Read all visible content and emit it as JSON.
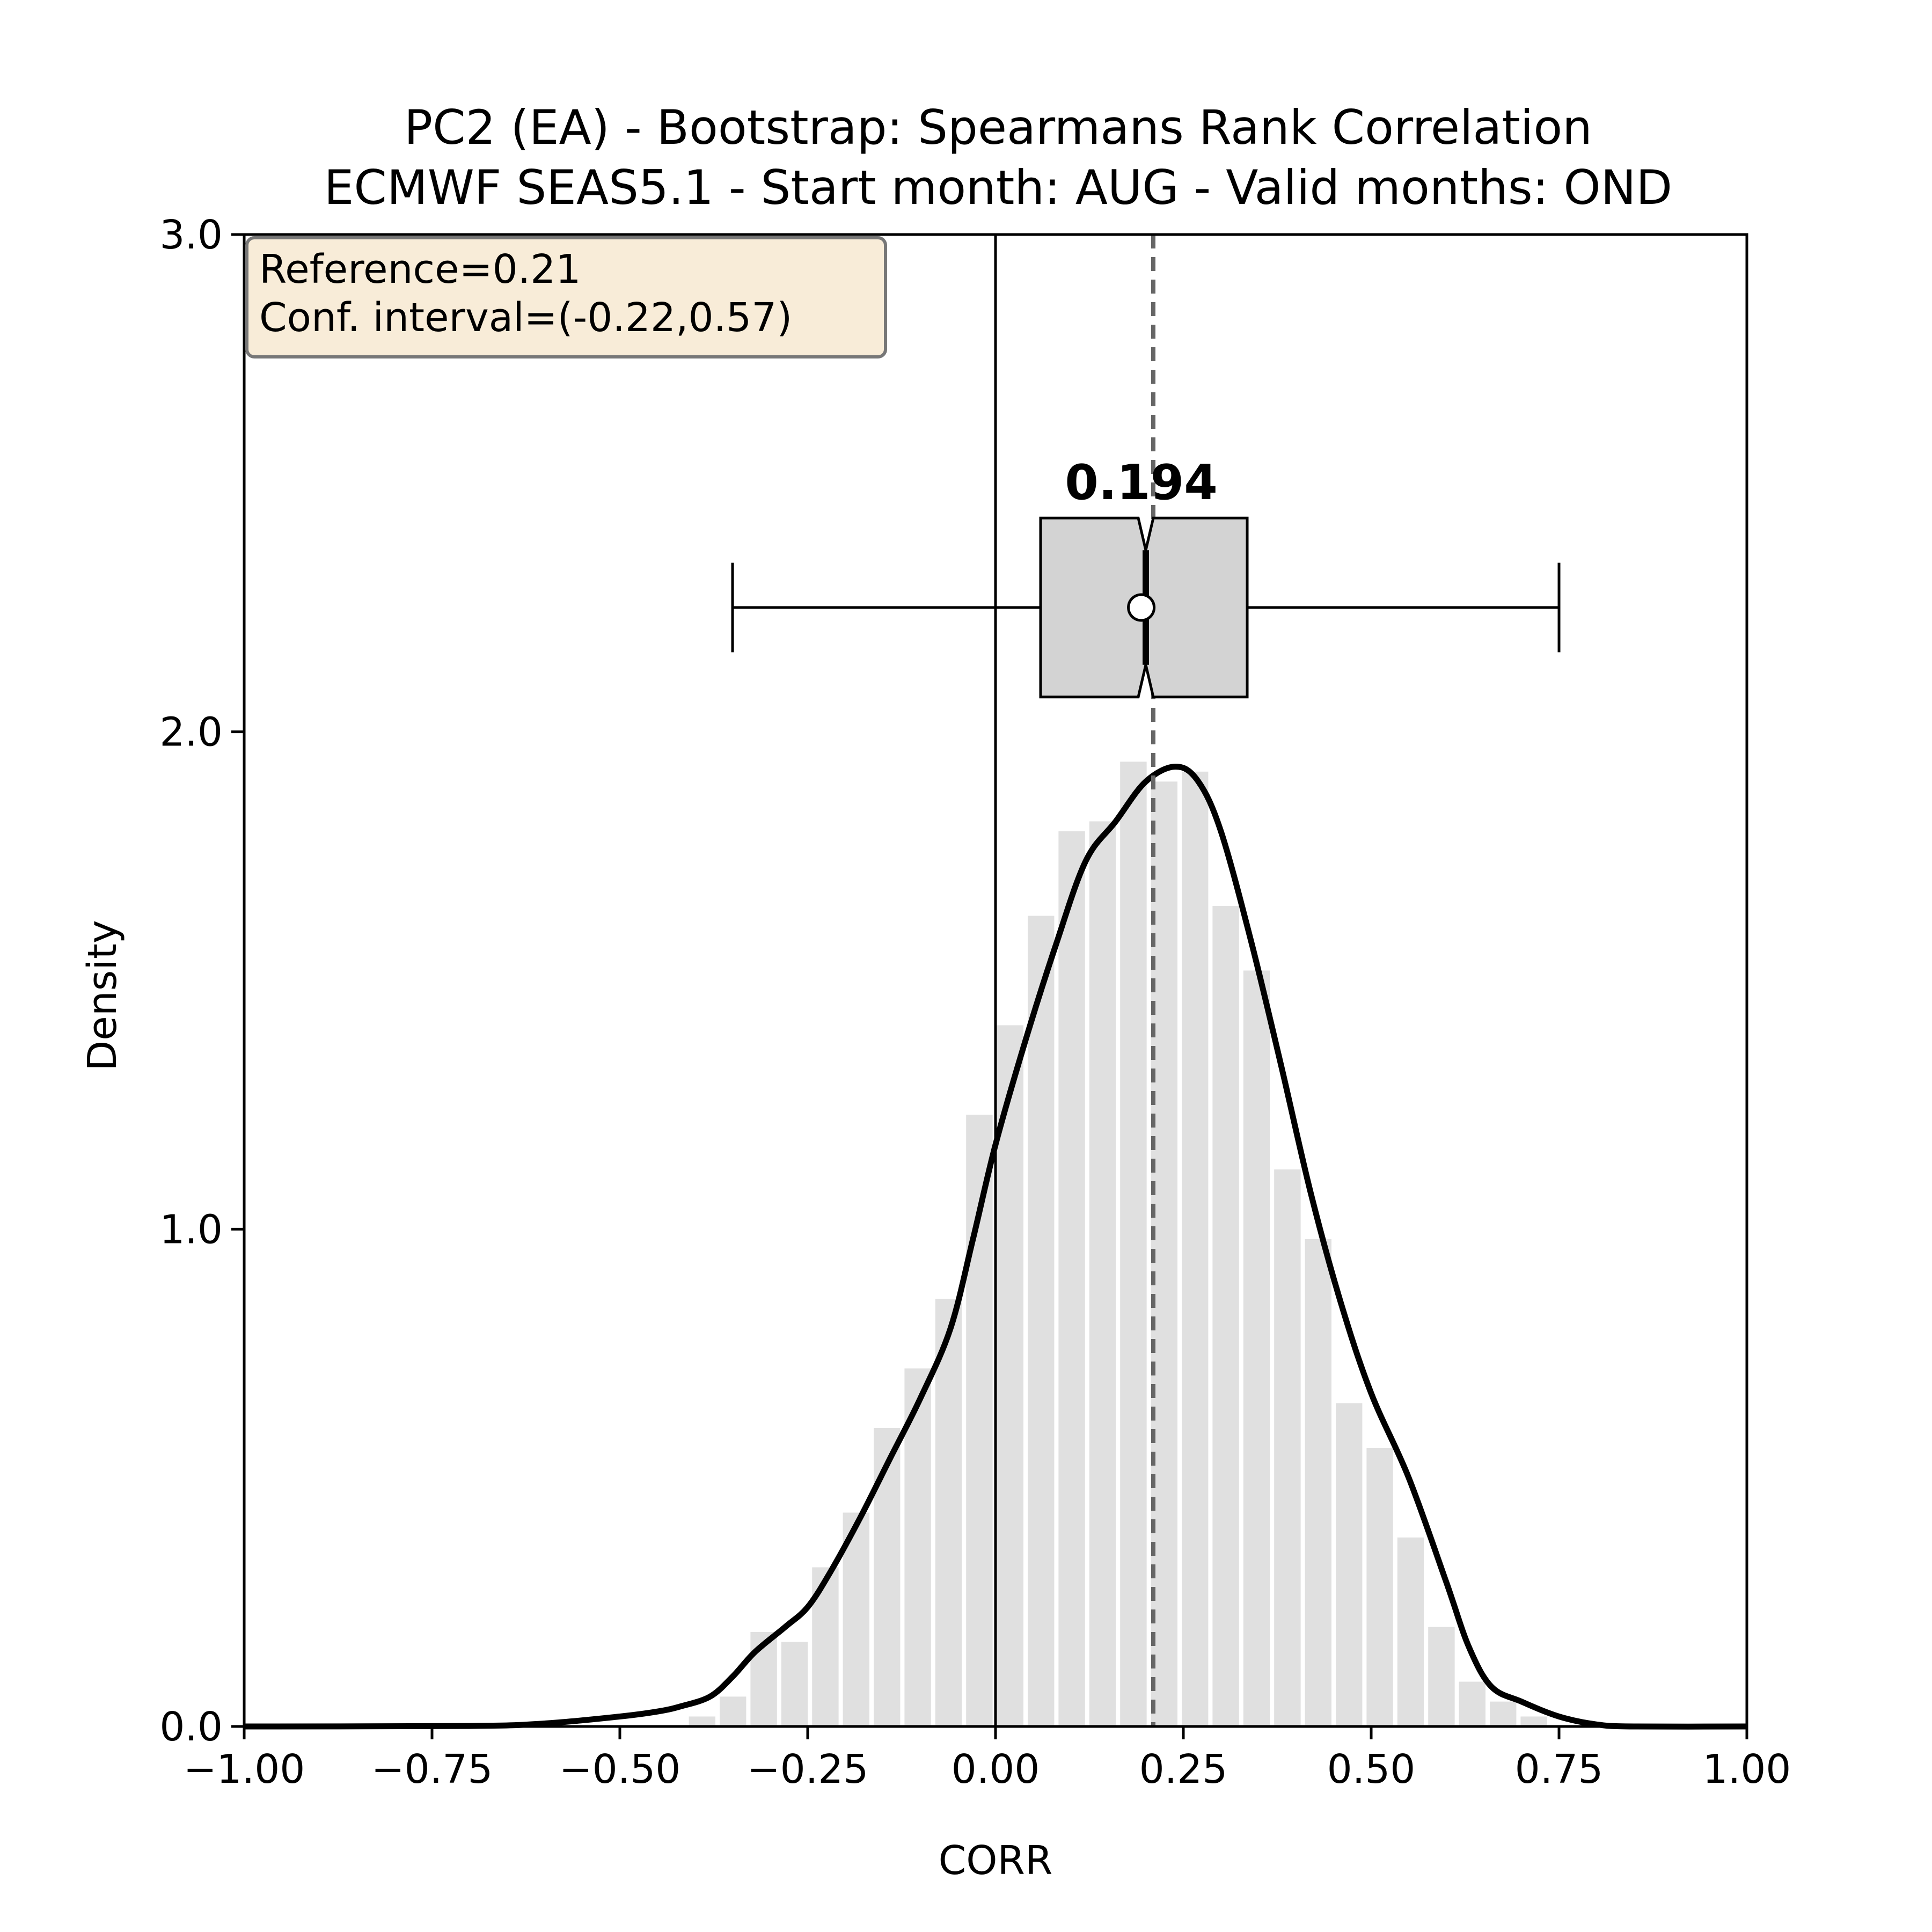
{
  "chart_data": {
    "type": "histogram",
    "title": "PC2 (EA) - Bootstrap: Spearmans Rank Correlation",
    "subtitle": "ECMWF SEAS5.1 - Start month: AUG - Valid months: OND",
    "xlabel": "CORR",
    "ylabel": "Density",
    "xlim": [
      -1.0,
      1.0
    ],
    "ylim": [
      0.0,
      3.0
    ],
    "x_ticks": [
      -1.0,
      -0.75,
      -0.5,
      -0.25,
      0.0,
      0.25,
      0.5,
      0.75,
      1.0
    ],
    "x_tick_labels": [
      "−1.00",
      "−0.75",
      "−0.50",
      "−0.25",
      "0.00",
      "0.25",
      "0.50",
      "0.75",
      "1.00"
    ],
    "y_ticks": [
      0.0,
      1.0,
      2.0,
      3.0
    ],
    "y_tick_labels": [
      "0.0",
      "1.0",
      "2.0",
      "3.0"
    ],
    "grid": false,
    "info_box": {
      "line1": "Reference=0.21",
      "line2": "Conf. interval=(-0.22,0.57)",
      "placement": "top-left"
    },
    "reference_value": 0.21,
    "zero_line_x": 0.0,
    "histogram": {
      "color": "#e0e0e0",
      "bins": [
        {
          "x0": -0.411,
          "x1": -0.37,
          "density": 0.02
        },
        {
          "x0": -0.37,
          "x1": -0.329,
          "density": 0.06
        },
        {
          "x0": -0.329,
          "x1": -0.288,
          "density": 0.19
        },
        {
          "x0": -0.288,
          "x1": -0.247,
          "density": 0.17
        },
        {
          "x0": -0.247,
          "x1": -0.206,
          "density": 0.32
        },
        {
          "x0": -0.206,
          "x1": -0.165,
          "density": 0.43
        },
        {
          "x0": -0.165,
          "x1": -0.124,
          "density": 0.6
        },
        {
          "x0": -0.124,
          "x1": -0.083,
          "density": 0.72
        },
        {
          "x0": -0.083,
          "x1": -0.042,
          "density": 0.86
        },
        {
          "x0": -0.042,
          "x1": -0.001,
          "density": 1.23
        },
        {
          "x0": -0.001,
          "x1": 0.04,
          "density": 1.41
        },
        {
          "x0": 0.04,
          "x1": 0.081,
          "density": 1.63
        },
        {
          "x0": 0.081,
          "x1": 0.122,
          "density": 1.8
        },
        {
          "x0": 0.122,
          "x1": 0.163,
          "density": 1.82
        },
        {
          "x0": 0.163,
          "x1": 0.204,
          "density": 1.94
        },
        {
          "x0": 0.204,
          "x1": 0.245,
          "density": 1.9
        },
        {
          "x0": 0.245,
          "x1": 0.286,
          "density": 1.92
        },
        {
          "x0": 0.286,
          "x1": 0.327,
          "density": 1.65
        },
        {
          "x0": 0.327,
          "x1": 0.368,
          "density": 1.52
        },
        {
          "x0": 0.368,
          "x1": 0.409,
          "density": 1.12
        },
        {
          "x0": 0.409,
          "x1": 0.45,
          "density": 0.98
        },
        {
          "x0": 0.45,
          "x1": 0.491,
          "density": 0.65
        },
        {
          "x0": 0.491,
          "x1": 0.532,
          "density": 0.56
        },
        {
          "x0": 0.532,
          "x1": 0.573,
          "density": 0.38
        },
        {
          "x0": 0.573,
          "x1": 0.614,
          "density": 0.2
        },
        {
          "x0": 0.614,
          "x1": 0.655,
          "density": 0.09
        },
        {
          "x0": 0.655,
          "x1": 0.696,
          "density": 0.05
        },
        {
          "x0": 0.696,
          "x1": 0.737,
          "density": 0.02
        }
      ]
    },
    "kde": {
      "color": "#000000",
      "points": [
        [
          -1.0,
          0.0
        ],
        [
          -0.7,
          0.001
        ],
        [
          -0.6,
          0.006
        ],
        [
          -0.5,
          0.02
        ],
        [
          -0.45,
          0.03
        ],
        [
          -0.42,
          0.04
        ],
        [
          -0.38,
          0.06
        ],
        [
          -0.35,
          0.1
        ],
        [
          -0.32,
          0.15
        ],
        [
          -0.28,
          0.2
        ],
        [
          -0.25,
          0.24
        ],
        [
          -0.22,
          0.31
        ],
        [
          -0.18,
          0.42
        ],
        [
          -0.14,
          0.54
        ],
        [
          -0.1,
          0.66
        ],
        [
          -0.06,
          0.8
        ],
        [
          -0.03,
          0.98
        ],
        [
          0.0,
          1.17
        ],
        [
          0.04,
          1.38
        ],
        [
          0.08,
          1.57
        ],
        [
          0.12,
          1.74
        ],
        [
          0.16,
          1.82
        ],
        [
          0.2,
          1.9
        ],
        [
          0.24,
          1.93
        ],
        [
          0.27,
          1.9
        ],
        [
          0.3,
          1.8
        ],
        [
          0.34,
          1.58
        ],
        [
          0.38,
          1.33
        ],
        [
          0.42,
          1.07
        ],
        [
          0.46,
          0.85
        ],
        [
          0.5,
          0.67
        ],
        [
          0.55,
          0.5
        ],
        [
          0.6,
          0.29
        ],
        [
          0.63,
          0.16
        ],
        [
          0.66,
          0.08
        ],
        [
          0.7,
          0.05
        ],
        [
          0.75,
          0.02
        ],
        [
          0.8,
          0.004
        ],
        [
          0.85,
          0.0
        ],
        [
          1.0,
          0.0
        ]
      ]
    },
    "boxplot": {
      "whisker_low": -0.35,
      "q1": 0.06,
      "median": 0.2,
      "mean": 0.194,
      "q3": 0.335,
      "whisker_high": 0.75,
      "notch_low": 0.19,
      "notch_high": 0.21,
      "y_center": 2.25,
      "y_half_height": 0.18,
      "cap_half_height": 0.09,
      "box_fill": "#d3d3d3",
      "median_label": "0.194"
    }
  }
}
